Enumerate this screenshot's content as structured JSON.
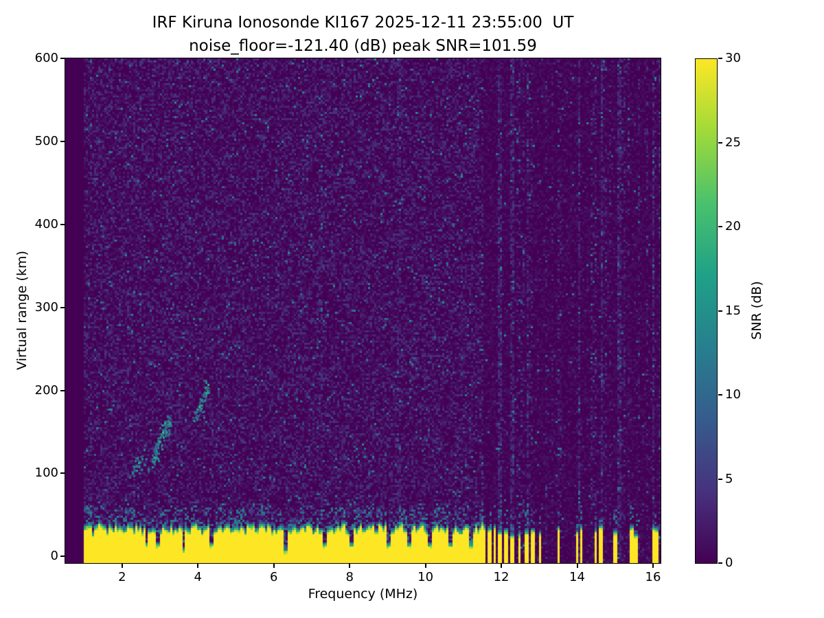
{
  "chart_data": {
    "type": "heatmap",
    "title": "IRF Kiruna Ionosonde KI167 2025-12-11 23:55:00  UT",
    "subtitle": "noise_floor=-121.40 (dB) peak SNR=101.59",
    "xlabel": "Frequency (MHz)",
    "ylabel": "Virtual range (km)",
    "colorbar_label": "SNR (dB)",
    "noise_floor_db": -121.4,
    "peak_snr_db": 101.59,
    "x_range": [
      0.5,
      16.2
    ],
    "y_range": [
      -8,
      600
    ],
    "snr_range": [
      0,
      30
    ],
    "x_ticks": [
      2,
      4,
      6,
      8,
      10,
      12,
      14,
      16
    ],
    "y_ticks": [
      0,
      100,
      200,
      300,
      400,
      500,
      600
    ],
    "colorbar_ticks": [
      0,
      5,
      10,
      15,
      20,
      25,
      30
    ],
    "colormap": "viridis",
    "colormap_stops": [
      "#440154",
      "#46327e",
      "#365c8d",
      "#277f8e",
      "#1fa187",
      "#4ac16d",
      "#a0da39",
      "#fde725"
    ],
    "sweep_start_mhz": 1.0,
    "sweep_end_mhz": 16.2,
    "features": {
      "ground_clutter": {
        "snr_db": 30,
        "top_km_mean": 30,
        "top_km_jitter": 10,
        "full_band_end_mhz": 11.6,
        "notches_mhz": [
          2.65,
          2.95,
          3.62,
          4.35,
          6.3,
          7.35,
          8.05,
          9.05,
          9.55,
          10.1,
          10.65,
          11.2
        ],
        "deep_notches_mhz": [
          3.62,
          6.3
        ],
        "bars_mhz": [
          11.68,
          11.82,
          11.97,
          12.12,
          12.3,
          12.48,
          12.66,
          12.84,
          13.02,
          13.5,
          14.0,
          14.12,
          14.5,
          14.62,
          15.0,
          15.45,
          15.55,
          16.0,
          16.1
        ]
      },
      "echo_trace": {
        "snr_db": 14,
        "clusters": [
          {
            "f0": 2.25,
            "f1": 2.6,
            "r0": 108,
            "r1": 122,
            "points": 30
          },
          {
            "f0": 2.78,
            "f1": 3.28,
            "r0": 120,
            "r1": 168,
            "points": 120
          },
          {
            "f0": 3.85,
            "f1": 4.3,
            "r0": 160,
            "r1": 212,
            "points": 50
          }
        ]
      },
      "interference": {
        "start_mhz": 11.55,
        "description": "vertical RFI stripes of elevated noise above 11.5 MHz",
        "weak_stripes_mhz": [
          7.25,
          9.3
        ]
      },
      "background_noise": {
        "speckle_mean_db": 1.2,
        "sparse_teal_fraction": 0.022
      }
    }
  }
}
